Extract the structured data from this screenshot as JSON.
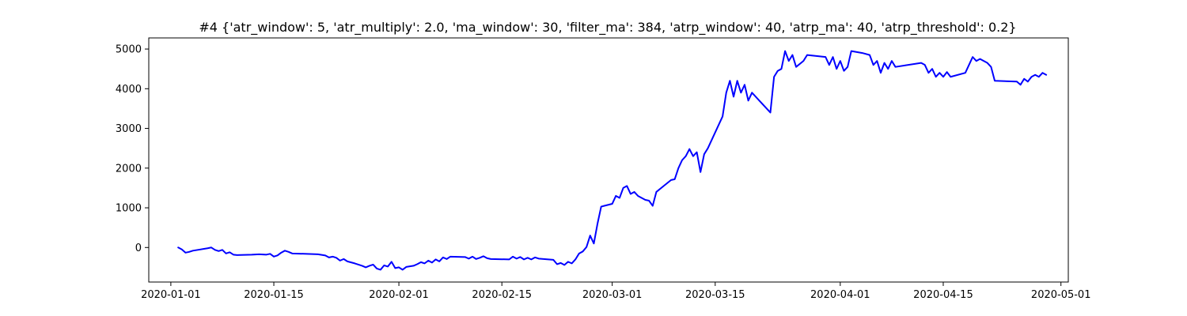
{
  "chart_data": {
    "type": "line",
    "title": "#4 {'atr_window': 5, 'atr_multiply': 2.0, 'ma_window': 30, 'filter_ma': 384, 'atrp_window': 40, 'atrp_ma': 40, 'atrp_threshold': 0.2}",
    "xlabel": "",
    "ylabel": "",
    "xlim": [
      "2019-12-29",
      "2020-05-02"
    ],
    "ylim": [
      -870,
      5280
    ],
    "x_ticks": [
      "2020-01-01",
      "2020-01-15",
      "2020-02-01",
      "2020-02-15",
      "2020-03-01",
      "2020-03-15",
      "2020-04-01",
      "2020-04-15",
      "2020-05-01"
    ],
    "y_ticks": [
      0,
      1000,
      2000,
      3000,
      4000,
      5000
    ],
    "grid": false,
    "legend": "none",
    "series": [
      {
        "color": "#0000ff",
        "points": [
          [
            "2020-01-02",
            0
          ],
          [
            "2020-01-02.5",
            -50
          ],
          [
            "2020-01-03",
            -130
          ],
          [
            "2020-01-03.5",
            -110
          ],
          [
            "2020-01-04",
            -80
          ],
          [
            "2020-01-06",
            -20
          ],
          [
            "2020-01-06.5",
            0
          ],
          [
            "2020-01-07",
            -60
          ],
          [
            "2020-01-07.5",
            -90
          ],
          [
            "2020-01-08",
            -60
          ],
          [
            "2020-01-08.5",
            -150
          ],
          [
            "2020-01-09",
            -120
          ],
          [
            "2020-01-09.5",
            -180
          ],
          [
            "2020-01-10",
            -190
          ],
          [
            "2020-01-12",
            -180
          ],
          [
            "2020-01-13",
            -170
          ],
          [
            "2020-01-14",
            -180
          ],
          [
            "2020-01-14.5",
            -160
          ],
          [
            "2020-01-15",
            -230
          ],
          [
            "2020-01-15.5",
            -200
          ],
          [
            "2020-01-16",
            -130
          ],
          [
            "2020-01-16.5",
            -80
          ],
          [
            "2020-01-17",
            -110
          ],
          [
            "2020-01-17.5",
            -150
          ],
          [
            "2020-01-21",
            -170
          ],
          [
            "2020-01-22",
            -200
          ],
          [
            "2020-01-22.5",
            -250
          ],
          [
            "2020-01-23",
            -230
          ],
          [
            "2020-01-23.5",
            -260
          ],
          [
            "2020-01-24",
            -330
          ],
          [
            "2020-01-24.5",
            -290
          ],
          [
            "2020-01-25",
            -350
          ],
          [
            "2020-01-26",
            -400
          ],
          [
            "2020-01-27",
            -460
          ],
          [
            "2020-01-27.5",
            -500
          ],
          [
            "2020-01-28",
            -460
          ],
          [
            "2020-01-28.5",
            -430
          ],
          [
            "2020-01-29",
            -530
          ],
          [
            "2020-01-29.5",
            -560
          ],
          [
            "2020-01-30",
            -450
          ],
          [
            "2020-01-30.5",
            -480
          ],
          [
            "2020-01-31",
            -360
          ],
          [
            "2020-01-31.5",
            -520
          ],
          [
            "2020-02-01",
            -500
          ],
          [
            "2020-02-01.5",
            -560
          ],
          [
            "2020-02-02",
            -490
          ],
          [
            "2020-02-03",
            -460
          ],
          [
            "2020-02-03.5",
            -420
          ],
          [
            "2020-02-04",
            -370
          ],
          [
            "2020-02-04.5",
            -400
          ],
          [
            "2020-02-05",
            -330
          ],
          [
            "2020-02-05.5",
            -380
          ],
          [
            "2020-02-06",
            -300
          ],
          [
            "2020-02-06.5",
            -350
          ],
          [
            "2020-02-07",
            -250
          ],
          [
            "2020-02-07.5",
            -290
          ],
          [
            "2020-02-08",
            -230
          ],
          [
            "2020-02-10",
            -240
          ],
          [
            "2020-02-10.5",
            -280
          ],
          [
            "2020-02-11",
            -230
          ],
          [
            "2020-02-11.5",
            -290
          ],
          [
            "2020-02-12",
            -260
          ],
          [
            "2020-02-12.5",
            -220
          ],
          [
            "2020-02-13",
            -270
          ],
          [
            "2020-02-13.5",
            -290
          ],
          [
            "2020-02-16",
            -300
          ],
          [
            "2020-02-16.5",
            -230
          ],
          [
            "2020-02-17",
            -280
          ],
          [
            "2020-02-17.5",
            -240
          ],
          [
            "2020-02-18",
            -300
          ],
          [
            "2020-02-18.5",
            -260
          ],
          [
            "2020-02-19",
            -300
          ],
          [
            "2020-02-19.5",
            -250
          ],
          [
            "2020-02-20",
            -280
          ],
          [
            "2020-02-22",
            -310
          ],
          [
            "2020-02-22.5",
            -420
          ],
          [
            "2020-02-23",
            -390
          ],
          [
            "2020-02-23.5",
            -440
          ],
          [
            "2020-02-24",
            -360
          ],
          [
            "2020-02-24.5",
            -400
          ],
          [
            "2020-02-25",
            -300
          ],
          [
            "2020-02-25.5",
            -150
          ],
          [
            "2020-02-26",
            -100
          ],
          [
            "2020-02-26.5",
            10
          ],
          [
            "2020-02-27",
            300
          ],
          [
            "2020-02-27.5",
            100
          ],
          [
            "2020-02-28",
            600
          ],
          [
            "2020-02-28.5",
            1030
          ],
          [
            "2020-03-01",
            1100
          ],
          [
            "2020-03-01.5",
            1300
          ],
          [
            "2020-03-02",
            1250
          ],
          [
            "2020-03-02.5",
            1500
          ],
          [
            "2020-03-03",
            1550
          ],
          [
            "2020-03-03.5",
            1350
          ],
          [
            "2020-03-04",
            1400
          ],
          [
            "2020-03-04.5",
            1300
          ],
          [
            "2020-03-05",
            1250
          ],
          [
            "2020-03-05.5",
            1200
          ],
          [
            "2020-03-06",
            1180
          ],
          [
            "2020-03-06.5",
            1050
          ],
          [
            "2020-03-07",
            1400
          ],
          [
            "2020-03-08",
            1550
          ],
          [
            "2020-03-09",
            1700
          ],
          [
            "2020-03-09.5",
            1720
          ],
          [
            "2020-03-10",
            2000
          ],
          [
            "2020-03-10.5",
            2200
          ],
          [
            "2020-03-11",
            2300
          ],
          [
            "2020-03-11.5",
            2480
          ],
          [
            "2020-03-12",
            2300
          ],
          [
            "2020-03-12.5",
            2400
          ],
          [
            "2020-03-13",
            1900
          ],
          [
            "2020-03-13.5",
            2350
          ],
          [
            "2020-03-14",
            2500
          ],
          [
            "2020-03-16",
            3300
          ],
          [
            "2020-03-16.5",
            3900
          ],
          [
            "2020-03-17",
            4200
          ],
          [
            "2020-03-17.5",
            3800
          ],
          [
            "2020-03-18",
            4200
          ],
          [
            "2020-03-18.5",
            3900
          ],
          [
            "2020-03-19",
            4100
          ],
          [
            "2020-03-19.5",
            3700
          ],
          [
            "2020-03-20",
            3900
          ],
          [
            "2020-03-21",
            3700
          ],
          [
            "2020-03-22",
            3500
          ],
          [
            "2020-03-22.5",
            3400
          ],
          [
            "2020-03-23",
            4300
          ],
          [
            "2020-03-23.5",
            4450
          ],
          [
            "2020-03-24",
            4500
          ],
          [
            "2020-03-24.5",
            4950
          ],
          [
            "2020-03-25",
            4700
          ],
          [
            "2020-03-25.5",
            4850
          ],
          [
            "2020-03-26",
            4550
          ],
          [
            "2020-03-27",
            4700
          ],
          [
            "2020-03-27.5",
            4850
          ],
          [
            "2020-03-30",
            4800
          ],
          [
            "2020-03-30.5",
            4600
          ],
          [
            "2020-03-31",
            4800
          ],
          [
            "2020-03-31.5",
            4500
          ],
          [
            "2020-04-01",
            4700
          ],
          [
            "2020-04-01.5",
            4450
          ],
          [
            "2020-04-02",
            4550
          ],
          [
            "2020-04-02.5",
            4950
          ],
          [
            "2020-04-04",
            4900
          ],
          [
            "2020-04-05",
            4850
          ],
          [
            "2020-04-05.5",
            4600
          ],
          [
            "2020-04-06",
            4700
          ],
          [
            "2020-04-06.5",
            4400
          ],
          [
            "2020-04-07",
            4650
          ],
          [
            "2020-04-07.5",
            4500
          ],
          [
            "2020-04-08",
            4700
          ],
          [
            "2020-04-08.5",
            4550
          ],
          [
            "2020-04-12",
            4650
          ],
          [
            "2020-04-12.5",
            4600
          ],
          [
            "2020-04-13",
            4400
          ],
          [
            "2020-04-13.5",
            4500
          ],
          [
            "2020-04-14",
            4300
          ],
          [
            "2020-04-14.5",
            4400
          ],
          [
            "2020-04-15",
            4300
          ],
          [
            "2020-04-15.5",
            4420
          ],
          [
            "2020-04-16",
            4300
          ],
          [
            "2020-04-18",
            4400
          ],
          [
            "2020-04-18.5",
            4600
          ],
          [
            "2020-04-19",
            4800
          ],
          [
            "2020-04-19.5",
            4700
          ],
          [
            "2020-04-20",
            4750
          ],
          [
            "2020-04-21",
            4650
          ],
          [
            "2020-04-21.5",
            4550
          ],
          [
            "2020-04-22",
            4200
          ],
          [
            "2020-04-25",
            4180
          ],
          [
            "2020-04-25.5",
            4100
          ],
          [
            "2020-04-26",
            4250
          ],
          [
            "2020-04-26.5",
            4180
          ],
          [
            "2020-04-27",
            4300
          ],
          [
            "2020-04-27.5",
            4350
          ],
          [
            "2020-04-28",
            4300
          ],
          [
            "2020-04-28.5",
            4400
          ],
          [
            "2020-04-29",
            4350
          ]
        ]
      }
    ]
  }
}
